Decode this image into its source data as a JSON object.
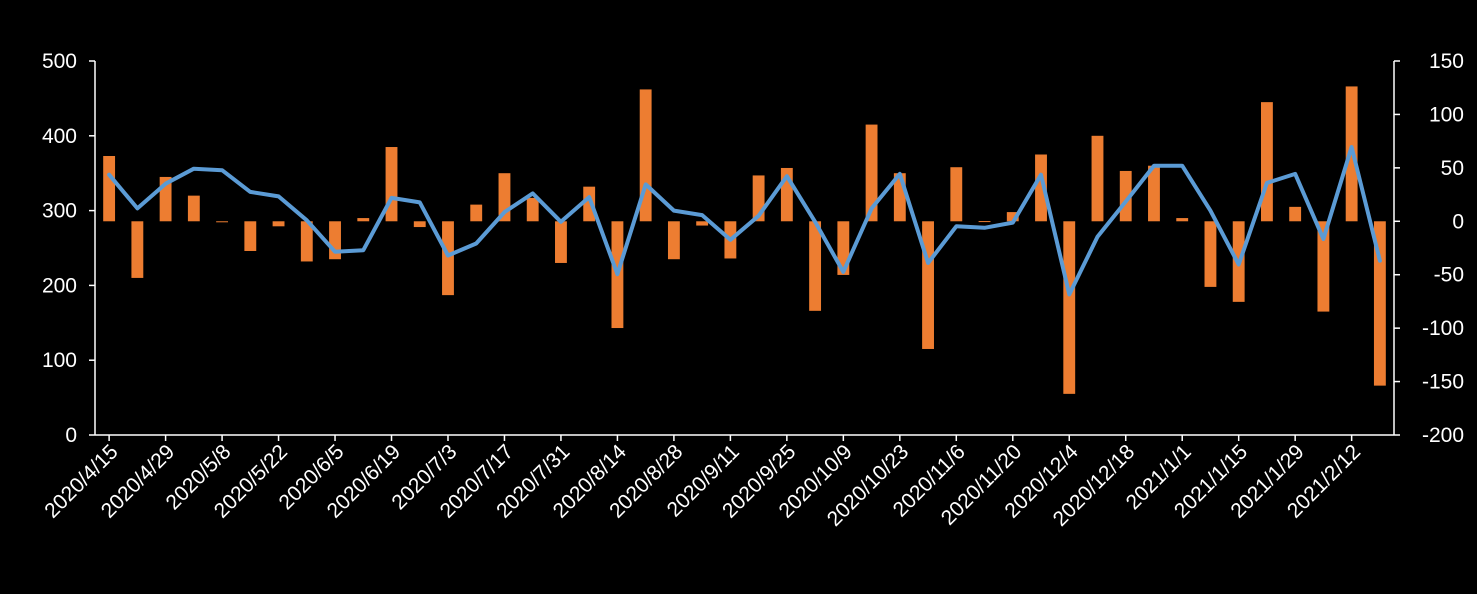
{
  "chart_data": {
    "type": "bar+line",
    "title": "",
    "xlabel": "",
    "ylabel_left": "",
    "ylabel_right": "",
    "ylim_left": [
      0,
      500
    ],
    "ylim_right": [
      -200,
      150
    ],
    "yticks_left": [
      "0",
      "100",
      "200",
      "300",
      "400",
      "500"
    ],
    "yticks_right": [
      "-200",
      "-150",
      "-100",
      "-50",
      "0",
      "50",
      "100",
      "150"
    ],
    "grid": false,
    "legend": "none",
    "x_tick_labels": [
      "2020/4/15",
      "2020/4/29",
      "2020/5/8",
      "2020/5/22",
      "2020/6/5",
      "2020/6/19",
      "2020/7/3",
      "2020/7/17",
      "2020/7/31",
      "2020/8/14",
      "2020/8/28",
      "2020/9/11",
      "2020/9/25",
      "2020/10/9",
      "2020/10/23",
      "2020/11/6",
      "2020/11/20",
      "2020/12/4",
      "2020/12/18",
      "2021/1/1",
      "2021/1/15",
      "2021/1/29",
      "2021/2/12"
    ],
    "series": [
      {
        "type": "bar",
        "axis": "left",
        "color": "#ed7d31",
        "values": [
          373,
          210,
          345,
          320,
          285,
          246,
          279,
          232,
          235,
          290,
          385,
          278,
          187,
          308,
          350,
          317,
          230,
          332,
          143,
          462,
          235,
          280,
          236,
          347,
          357,
          166,
          214,
          415,
          350,
          115,
          358,
          286,
          298,
          375,
          55,
          400,
          353,
          360,
          290,
          198,
          178,
          445,
          305,
          165,
          466,
          66
        ]
      },
      {
        "type": "line",
        "axis": "left",
        "color": "#5b9bd5",
        "values": [
          348,
          303,
          336,
          356,
          354,
          325,
          319,
          287,
          245,
          247,
          317,
          311,
          240,
          256,
          298,
          323,
          285,
          318,
          215,
          335,
          300,
          294,
          261,
          293,
          346,
          285,
          218,
          303,
          349,
          230,
          279,
          277,
          284,
          348,
          188,
          265,
          312,
          360,
          360,
          300,
          228,
          337,
          349,
          262,
          385,
          233
        ]
      }
    ]
  }
}
